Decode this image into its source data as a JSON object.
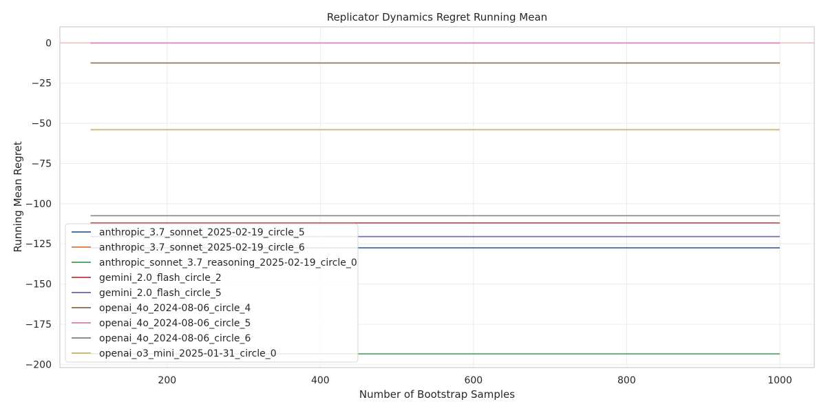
{
  "chart_data": {
    "type": "line",
    "title": "Replicator Dynamics Regret Running Mean",
    "xlabel": "Number of Bootstrap Samples",
    "ylabel": "Running Mean Regret",
    "xlim": [
      60,
      1045
    ],
    "ylim": [
      -202,
      10
    ],
    "xticks": [
      200,
      400,
      600,
      800,
      1000
    ],
    "yticks": [
      0,
      -25,
      -50,
      -75,
      -100,
      -125,
      -150,
      -175,
      -200
    ],
    "grid": true,
    "legend_position": "lower-left",
    "reference_line": {
      "y": 0,
      "color": "#e8b9b9"
    },
    "series": [
      {
        "name": "anthropic_3.7_sonnet_2025-02-19_circle_5",
        "color": "#4c72b0",
        "x": [
          100,
          1000
        ],
        "y": [
          -127.5,
          -127.5
        ]
      },
      {
        "name": "anthropic_3.7_sonnet_2025-02-19_circle_6",
        "color": "#dd8452",
        "x": [
          100,
          1000
        ],
        "y": [
          0,
          0
        ]
      },
      {
        "name": "anthropic_sonnet_3.7_reasoning_2025-02-19_circle_0",
        "color": "#55a868",
        "x": [
          100,
          1000
        ],
        "y": [
          -193.5,
          -193.5
        ]
      },
      {
        "name": "gemini_2.0_flash_circle_2",
        "color": "#c44e52",
        "x": [
          100,
          1000
        ],
        "y": [
          -112,
          -112
        ]
      },
      {
        "name": "gemini_2.0_flash_circle_5",
        "color": "#8172b3",
        "x": [
          100,
          1000
        ],
        "y": [
          -120.5,
          -120.5
        ]
      },
      {
        "name": "openai_4o_2024-08-06_circle_4",
        "color": "#937860",
        "x": [
          100,
          1000
        ],
        "y": [
          -12.5,
          -12.5
        ]
      },
      {
        "name": "openai_4o_2024-08-06_circle_5",
        "color": "#da8bc3",
        "x": [
          100,
          1000
        ],
        "y": [
          0,
          0
        ]
      },
      {
        "name": "openai_4o_2024-08-06_circle_6",
        "color": "#8c8c8c",
        "x": [
          100,
          1000
        ],
        "y": [
          -107.5,
          -107.5
        ]
      },
      {
        "name": "openai_o3_mini_2025-01-31_circle_0",
        "color": "#ccb974",
        "x": [
          100,
          1000
        ],
        "y": [
          -54,
          -54
        ]
      }
    ]
  }
}
